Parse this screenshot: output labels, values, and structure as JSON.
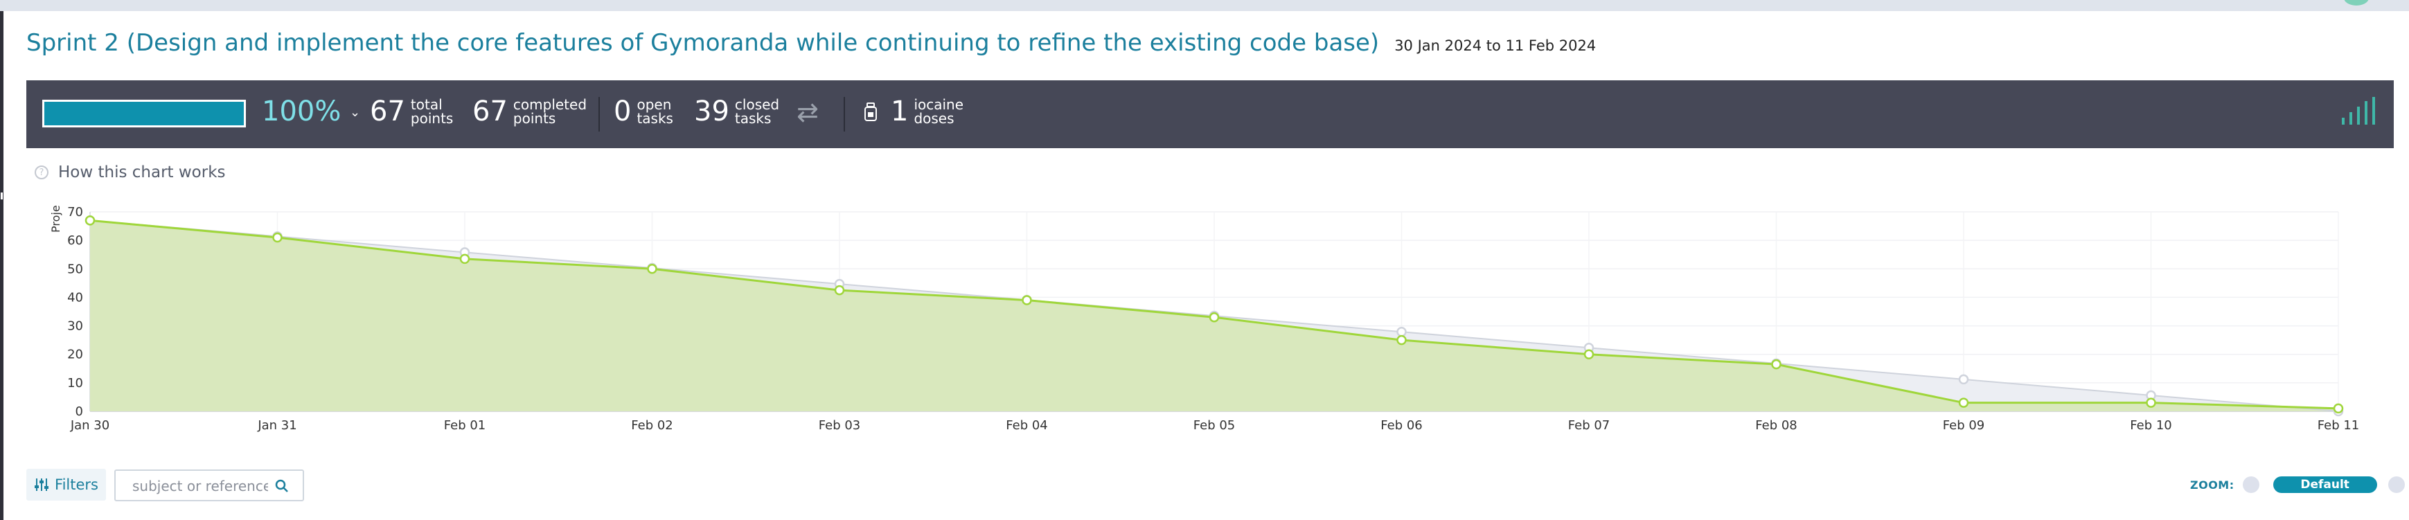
{
  "header": {
    "title": "Sprint 2 (Design and implement the core features of Gymoranda while continuing to refine the existing code base)",
    "dates": "30 Jan 2024 to 11 Feb 2024"
  },
  "stats": {
    "progress_fraction": 1.0,
    "percent": "100%",
    "total_points": {
      "value": "67",
      "label1": "total",
      "label2": "points"
    },
    "completed_points": {
      "value": "67",
      "label1": "completed",
      "label2": "points"
    },
    "open_tasks": {
      "value": "0",
      "label1": "open",
      "label2": "tasks"
    },
    "closed_tasks": {
      "value": "39",
      "label1": "closed",
      "label2": "tasks"
    },
    "iocaine": {
      "value": "1",
      "label1": "iocaine",
      "label2": "doses"
    }
  },
  "help": {
    "label": "How this chart works"
  },
  "chart_data": {
    "type": "area",
    "ylabel": "Proje",
    "ylim": [
      0,
      70
    ],
    "yticks": [
      0,
      10,
      20,
      30,
      40,
      50,
      60,
      70
    ],
    "categories": [
      "Jan 30",
      "Jan 31",
      "Feb 01",
      "Feb 02",
      "Feb 03",
      "Feb 04",
      "Feb 05",
      "Feb 06",
      "Feb 07",
      "Feb 08",
      "Feb 09",
      "Feb 10",
      "Feb 11"
    ],
    "series": [
      {
        "values": [
          67,
          61.4,
          55.8,
          50.3,
          44.7,
          39.1,
          33.5,
          27.9,
          22.3,
          16.8,
          11.2,
          5.6,
          0
        ]
      },
      {
        "values": [
          67,
          61,
          53.5,
          50,
          42.5,
          39,
          33,
          25,
          20,
          16.5,
          3,
          3,
          1
        ]
      }
    ],
    "colors": {
      "ideal_line": "#cfd3dc",
      "ideal_fill": "#eceef3",
      "real_line": "#9fd63a",
      "real_fill": "#d9e8bd"
    },
    "grid": true
  },
  "filters": {
    "button_label": "Filters",
    "search_placeholder": "subject or reference"
  },
  "zoom": {
    "label": "ZOOM:",
    "selected": "Default"
  }
}
